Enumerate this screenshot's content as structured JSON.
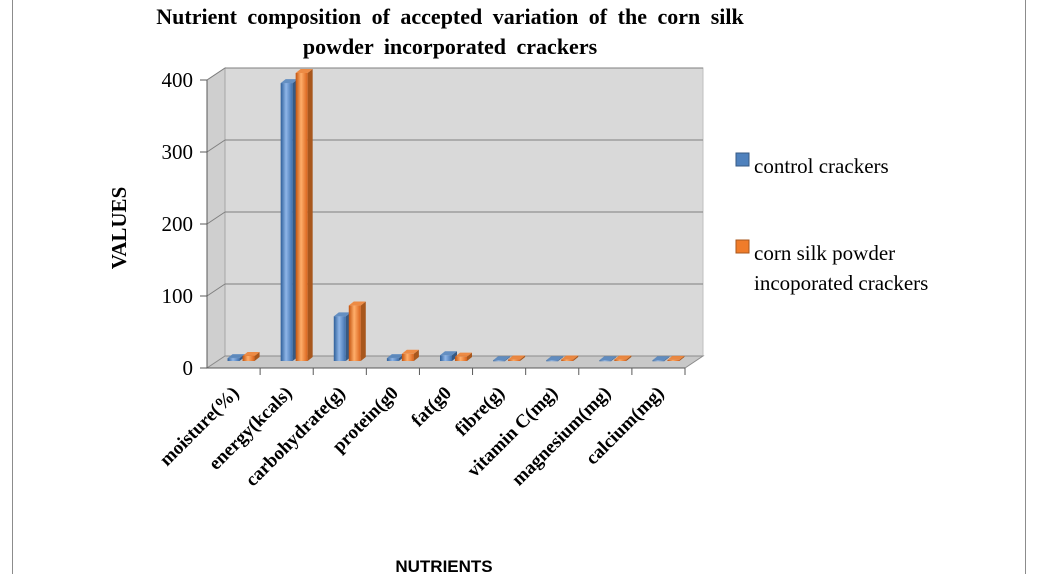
{
  "chart_data": {
    "type": "bar",
    "title": "Nutrient composition of accepted variation of the corn silk powder incorporated crackers",
    "title_lines": [
      "Nutrient composition of accepted variation of the corn silk",
      "powder incorporated crackers"
    ],
    "xlabel": "NUTRIENTS",
    "ylabel": "VALUES",
    "ylim": [
      0,
      400
    ],
    "yticks": [
      0,
      100,
      200,
      300,
      400
    ],
    "grid": true,
    "legend_position": "right",
    "categories": [
      "moisture(%)",
      "energy(kcals)",
      "carbohydrate(g)",
      "protein(g0",
      "fat(g0",
      "fibre(g)",
      "vitamin C(mg)",
      "magnesium(mg)",
      "calcium(mg)"
    ],
    "series": [
      {
        "name": "control crackers",
        "legend_lines": [
          "control crackers"
        ],
        "color": "#4f81bd",
        "values": [
          4,
          386,
          62,
          4,
          8,
          1,
          1,
          1,
          1
        ]
      },
      {
        "name": "corn silk powder incoporated crackers",
        "legend_lines": [
          "corn silk powder",
          "incoporated crackers"
        ],
        "color": "#f07c2a",
        "values": [
          7,
          400,
          77,
          10,
          6,
          2,
          2,
          2,
          1.5
        ]
      }
    ]
  }
}
